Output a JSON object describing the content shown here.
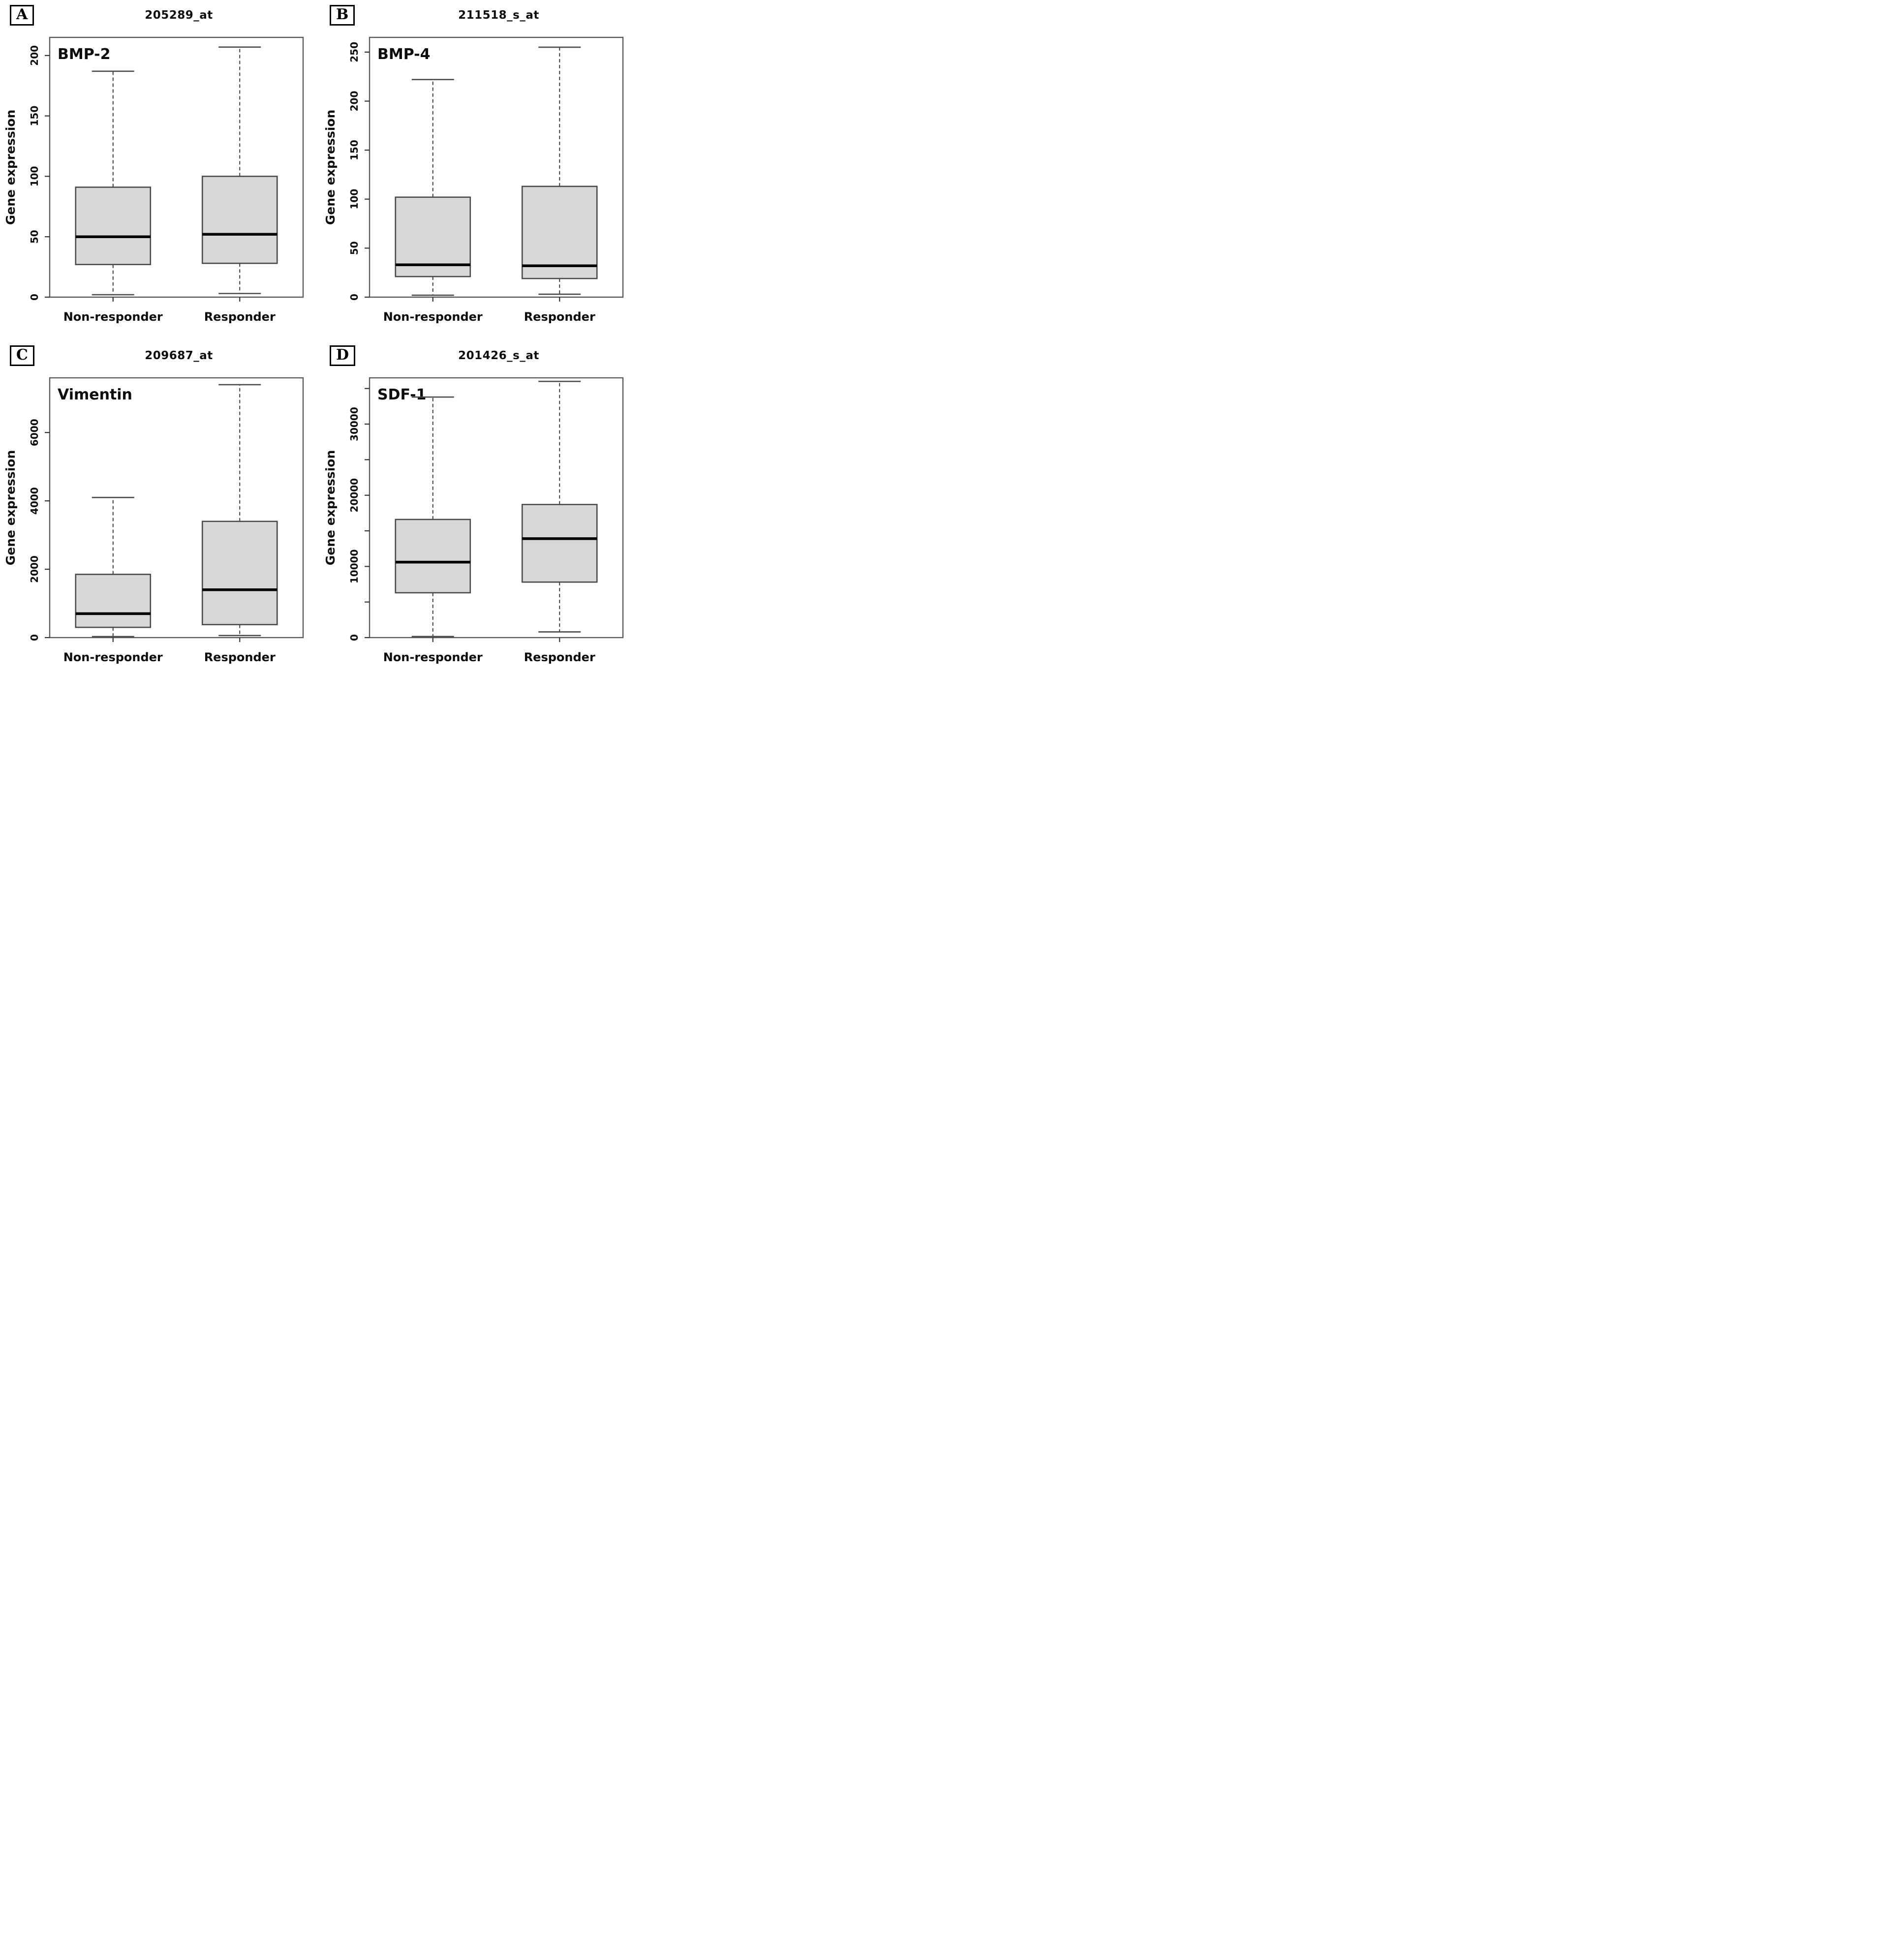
{
  "figure": {
    "background": "#ffffff",
    "ylabel": "Gene expression",
    "categories": [
      "Non-responder",
      "Responder"
    ]
  },
  "colors": {
    "box_fill": "#d7d7d7",
    "box_border": "#4a4a4a",
    "median": "#000000",
    "whisker": "#3d3d3d",
    "whisker_cap": "#4a4a4a",
    "plot_border": "#595959",
    "tick": "#333333",
    "text": "#0d0d0d"
  },
  "chart_data": [
    {
      "type": "boxplot",
      "panel": "A",
      "title": "205289_at",
      "gene": "BMP-2",
      "ylabel": "Gene expression",
      "categories": [
        "Non-responder",
        "Responder"
      ],
      "ylim": [
        0,
        215
      ],
      "yticks_major": [
        0,
        50,
        100,
        150,
        200
      ],
      "yticks_minor": [],
      "series": [
        {
          "name": "Non-responder",
          "min": 2,
          "q1": 27,
          "median": 50,
          "q3": 91,
          "max": 187
        },
        {
          "name": "Responder",
          "min": 3,
          "q1": 28,
          "median": 52,
          "q3": 100,
          "max": 207
        }
      ]
    },
    {
      "type": "boxplot",
      "panel": "B",
      "title": "211518_s_at",
      "gene": "BMP-4",
      "ylabel": "Gene expression",
      "categories": [
        "Non-responder",
        "Responder"
      ],
      "ylim": [
        0,
        265
      ],
      "yticks_major": [
        0,
        50,
        100,
        150,
        200,
        250
      ],
      "yticks_minor": [],
      "series": [
        {
          "name": "Non-responder",
          "min": 2,
          "q1": 21,
          "median": 33,
          "q3": 102,
          "max": 222
        },
        {
          "name": "Responder",
          "min": 3,
          "q1": 19,
          "median": 32,
          "q3": 113,
          "max": 255
        }
      ]
    },
    {
      "type": "boxplot",
      "panel": "C",
      "title": "209687_at",
      "gene": "Vimentin",
      "ylabel": "Gene expression",
      "categories": [
        "Non-responder",
        "Responder"
      ],
      "ylim": [
        0,
        7600
      ],
      "yticks_major": [
        0,
        2000,
        4000,
        6000
      ],
      "yticks_minor": [],
      "series": [
        {
          "name": "Non-responder",
          "min": 30,
          "q1": 300,
          "median": 700,
          "q3": 1850,
          "max": 4100
        },
        {
          "name": "Responder",
          "min": 60,
          "q1": 380,
          "median": 1400,
          "q3": 3400,
          "max": 7400
        }
      ]
    },
    {
      "type": "boxplot",
      "panel": "D",
      "title": "201426_s_at",
      "gene": "SDF-1",
      "ylabel": "Gene expression",
      "categories": [
        "Non-responder",
        "Responder"
      ],
      "ylim": [
        0,
        36500
      ],
      "yticks_major": [
        0,
        10000,
        20000,
        30000
      ],
      "yticks_minor": [
        5000,
        15000,
        25000,
        35000
      ],
      "series": [
        {
          "name": "Non-responder",
          "min": 150,
          "q1": 6300,
          "median": 10600,
          "q3": 16600,
          "max": 33800
        },
        {
          "name": "Responder",
          "min": 800,
          "q1": 7800,
          "median": 13900,
          "q3": 18700,
          "max": 36000
        }
      ]
    }
  ]
}
